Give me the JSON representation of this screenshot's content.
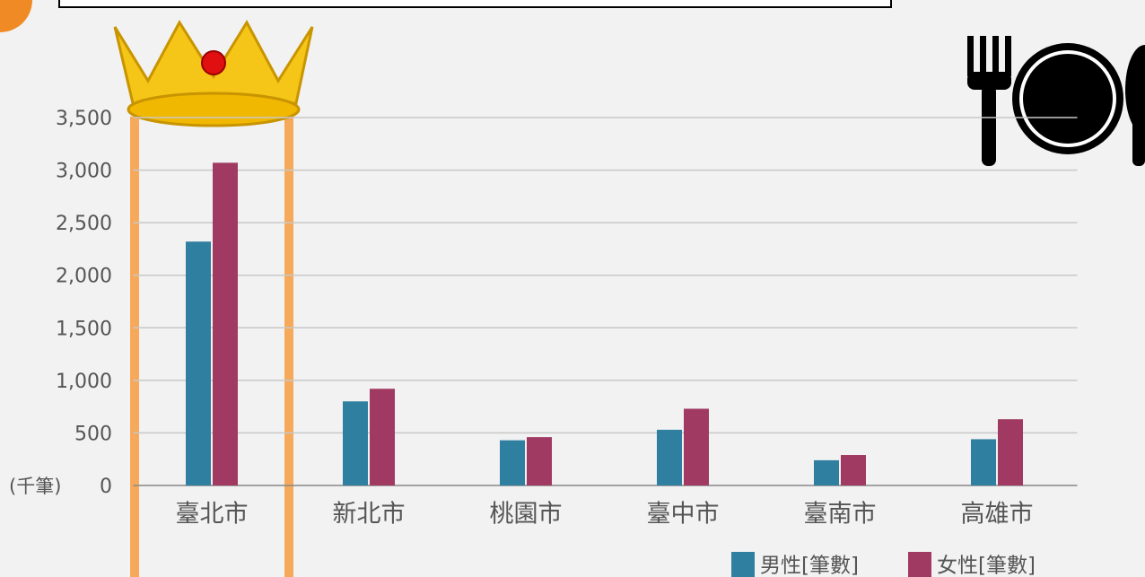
{
  "chart_data": {
    "type": "bar",
    "y_label": "(千筆)",
    "categories": [
      "臺北市",
      "新北市",
      "桃園市",
      "臺中市",
      "臺南市",
      "高雄市"
    ],
    "series": [
      {
        "name": "男性[筆數]",
        "color": "#2f7fa0",
        "values": [
          2320,
          800,
          430,
          530,
          240,
          440
        ]
      },
      {
        "name": "女性[筆數]",
        "color": "#a03a62",
        "values": [
          3070,
          920,
          460,
          730,
          290,
          630
        ]
      }
    ],
    "ylim": [
      0,
      3500
    ],
    "yticks": [
      0,
      {
        "value": 500,
        "label": "500"
      },
      {
        "value": 1000,
        "label": "1,000"
      },
      {
        "value": 1500,
        "label": "1,500"
      },
      {
        "value": 2000,
        "label": "2,000"
      },
      {
        "value": 2500,
        "label": "2,500"
      },
      {
        "value": 3000,
        "label": "3,000"
      },
      {
        "value": 3500,
        "label": "3,500"
      }
    ],
    "grid": true,
    "legend": "bottom-right"
  }
}
